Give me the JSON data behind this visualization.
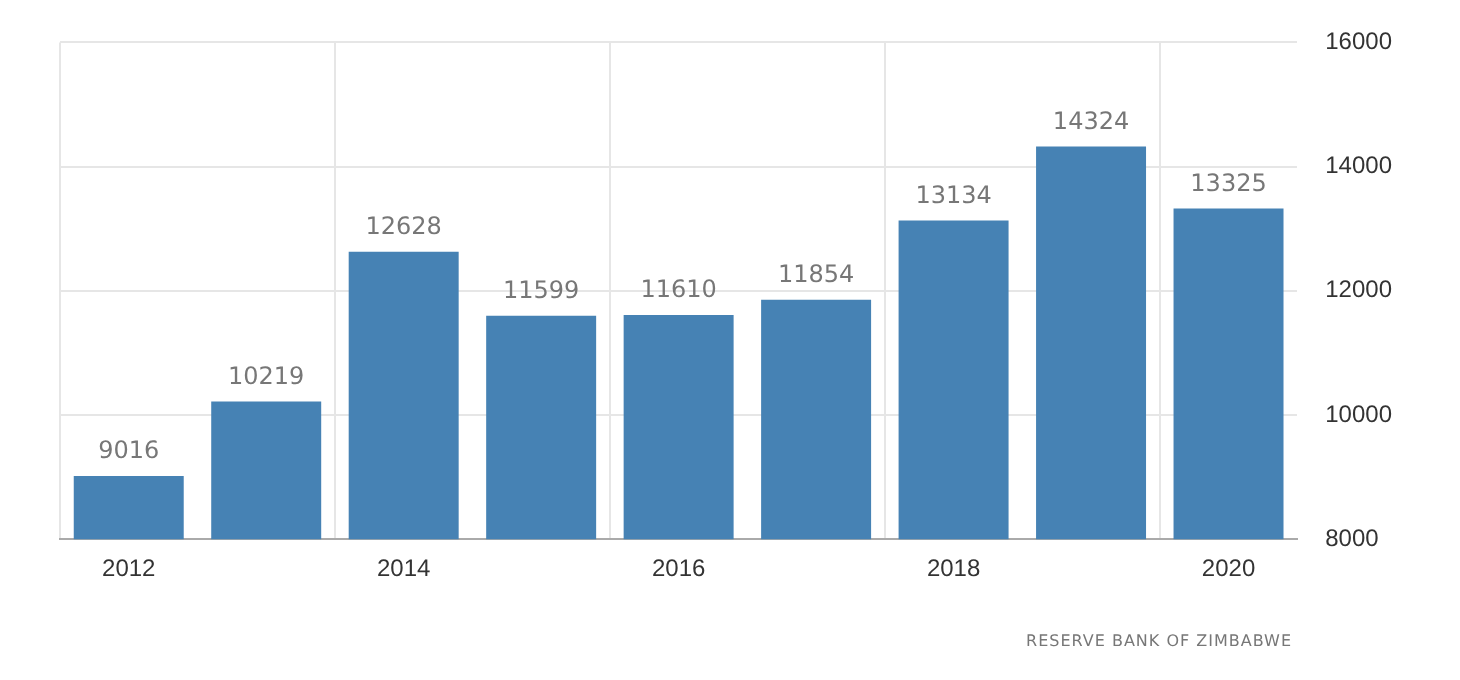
{
  "chart_data": {
    "type": "bar",
    "categories": [
      "2012",
      null,
      "2014",
      null,
      "2016",
      null,
      "2018",
      null,
      "2020"
    ],
    "values": [
      9016,
      10219,
      12628,
      11599,
      11610,
      11854,
      13134,
      14324,
      13325
    ],
    "color": "#4682b4",
    "ylim": [
      8000,
      16000
    ],
    "yticks": [
      8000,
      10000,
      12000,
      14000,
      16000
    ],
    "grid": true,
    "legend": false,
    "data_labels": true,
    "annotations": [
      "RESERVE BANK OF ZIMBABWE"
    ]
  }
}
